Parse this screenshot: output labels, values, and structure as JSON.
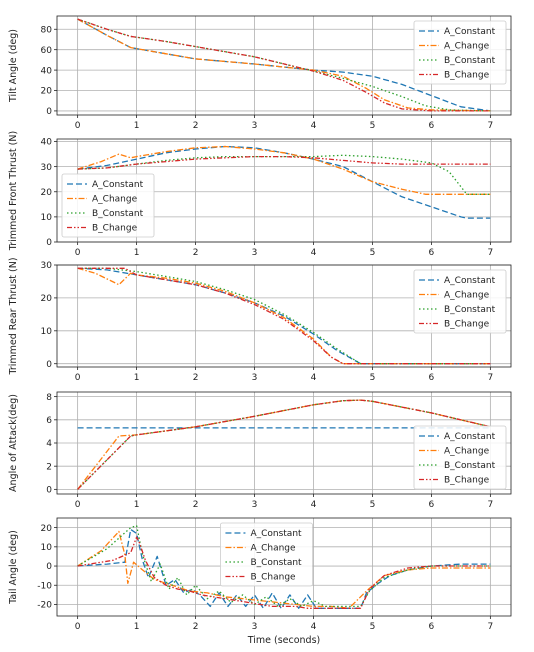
{
  "chart_data": [
    {
      "type": "line",
      "ylabel": "Tilt Angle (deg)",
      "xlabel": "",
      "xlim": [
        -0.35,
        7.35
      ],
      "ylim": [
        -4,
        93
      ],
      "xticks": [
        "0",
        "1",
        "2",
        "3",
        "4",
        "5",
        "6",
        "7"
      ],
      "yticks": [
        "0",
        "20",
        "40",
        "60",
        "80"
      ],
      "grid": true,
      "legend": "top-right",
      "series": [
        {
          "name": "A_Constant",
          "x": [
            0,
            0.5,
            0.9,
            1.5,
            2,
            3,
            4,
            4.5,
            5,
            5.5,
            6,
            6.5,
            7
          ],
          "y": [
            90,
            74,
            62,
            56,
            51,
            46,
            40,
            38,
            34,
            26,
            15,
            4,
            0
          ]
        },
        {
          "name": "A_Change",
          "x": [
            0,
            0.5,
            0.9,
            1.5,
            2,
            3,
            4,
            4.5,
            4.9,
            5.2,
            5.6,
            6,
            7
          ],
          "y": [
            90,
            74,
            62,
            56,
            51,
            46,
            40,
            34,
            22,
            11,
            3,
            1,
            0
          ]
        },
        {
          "name": "B_Constant",
          "x": [
            0,
            0.5,
            0.9,
            1.5,
            2,
            3,
            4,
            4.5,
            5,
            5.5,
            5.9,
            6.3,
            7
          ],
          "y": [
            90,
            80,
            73,
            68,
            63,
            53,
            39,
            32,
            24,
            14,
            5,
            1,
            0
          ]
        },
        {
          "name": "B_Change",
          "x": [
            0,
            0.5,
            0.9,
            1.5,
            2,
            3,
            4,
            4.5,
            4.9,
            5.2,
            5.5,
            6,
            7
          ],
          "y": [
            90,
            80,
            73,
            68,
            63,
            53,
            39,
            30,
            18,
            8,
            2,
            0,
            0
          ]
        }
      ]
    },
    {
      "type": "line",
      "ylabel": "Trimmed Front Thrust (N)",
      "xlabel": "",
      "xlim": [
        -0.35,
        7.35
      ],
      "ylim": [
        0,
        41
      ],
      "xticks": [
        "0",
        "1",
        "2",
        "3",
        "4",
        "5",
        "6",
        "7"
      ],
      "yticks": [
        "0",
        "10",
        "20",
        "30",
        "40"
      ],
      "grid": true,
      "legend": "bottom-left",
      "series": [
        {
          "name": "A_Constant",
          "x": [
            0,
            0.5,
            1,
            1.5,
            2,
            2.5,
            3,
            3.5,
            4,
            4.5,
            5,
            5.5,
            6,
            6.5,
            6.6,
            7
          ],
          "y": [
            29,
            30.5,
            33,
            35.5,
            37,
            38,
            37.5,
            35.5,
            33,
            30,
            24,
            18,
            14,
            10,
            9.5,
            9.5
          ]
        },
        {
          "name": "A_Change",
          "x": [
            0,
            0.4,
            0.7,
            0.9,
            1,
            1.5,
            2,
            2.5,
            3,
            3.5,
            4,
            4.5,
            5,
            5.5,
            5.9,
            7
          ],
          "y": [
            29,
            32,
            35,
            33.5,
            34,
            36,
            37.5,
            38,
            37,
            35.5,
            33,
            29,
            24,
            21,
            19,
            19
          ]
        },
        {
          "name": "B_Constant",
          "x": [
            0,
            0.5,
            1,
            1.5,
            2,
            2.5,
            3,
            3.5,
            4,
            4.5,
            5,
            5.5,
            6,
            6.3,
            6.5,
            6.6,
            7
          ],
          "y": [
            29,
            29.5,
            31,
            32.5,
            33.5,
            34,
            34,
            34,
            34,
            34.5,
            34,
            33,
            31.5,
            28,
            22,
            19,
            19
          ]
        },
        {
          "name": "B_Change",
          "x": [
            0,
            0.5,
            1,
            1.5,
            2,
            2.5,
            3,
            3.5,
            4,
            4.5,
            5,
            5.5,
            6,
            7
          ],
          "y": [
            29,
            29.5,
            31,
            32,
            33,
            33.5,
            34,
            34,
            33.5,
            32.5,
            31.5,
            31,
            31,
            31
          ]
        }
      ]
    },
    {
      "type": "line",
      "ylabel": "Trimmed Rear Thrust (N)",
      "xlabel": "",
      "xlim": [
        -0.35,
        7.35
      ],
      "ylim": [
        -1,
        30
      ],
      "xticks": [
        "0",
        "1",
        "2",
        "3",
        "4",
        "5",
        "6",
        "7"
      ],
      "yticks": [
        "0",
        "10",
        "20",
        "30"
      ],
      "grid": true,
      "legend": "top-right",
      "series": [
        {
          "name": "A_Constant",
          "x": [
            0,
            0.5,
            1,
            1.5,
            2,
            2.5,
            3,
            3.5,
            4,
            4.4,
            4.8,
            5,
            7
          ],
          "y": [
            29,
            28.5,
            27,
            25.5,
            24,
            21.5,
            18.5,
            14.5,
            9,
            4,
            0,
            0,
            0
          ]
        },
        {
          "name": "A_Change",
          "x": [
            0,
            0.3,
            0.7,
            0.9,
            1,
            1.5,
            2,
            2.5,
            3,
            3.5,
            4,
            4.3,
            4.5,
            5,
            7
          ],
          "y": [
            29,
            27.5,
            24,
            27.5,
            27,
            26,
            24.5,
            22,
            18.5,
            14,
            7.5,
            2,
            0,
            0,
            0
          ]
        },
        {
          "name": "B_Constant",
          "x": [
            0,
            0.5,
            1,
            1.5,
            2,
            2.5,
            3,
            3.5,
            4,
            4.4,
            4.8,
            5,
            7
          ],
          "y": [
            29,
            29,
            28,
            26.5,
            25,
            22.5,
            19.5,
            15,
            9.5,
            4.5,
            0,
            0,
            0
          ]
        },
        {
          "name": "B_Change",
          "x": [
            0,
            0.5,
            0.8,
            1,
            1.5,
            2,
            2.5,
            3,
            3.5,
            4,
            4.3,
            4.5,
            5,
            7
          ],
          "y": [
            29,
            29,
            29,
            27,
            25.5,
            24,
            21.5,
            18,
            13.5,
            7,
            2,
            0,
            0,
            0
          ]
        }
      ]
    },
    {
      "type": "line",
      "ylabel": "Angle of Attack(deg)",
      "xlabel": "",
      "xlim": [
        -0.35,
        7.35
      ],
      "ylim": [
        -0.4,
        8.4
      ],
      "xticks": [
        "0",
        "1",
        "2",
        "3",
        "4",
        "5",
        "6",
        "7"
      ],
      "yticks": [
        "0",
        "2",
        "4",
        "6",
        "8"
      ],
      "grid": true,
      "legend": "bottom-right",
      "series": [
        {
          "name": "A_Constant",
          "x": [
            0,
            7
          ],
          "y": [
            5.3,
            5.3
          ]
        },
        {
          "name": "A_Change",
          "x": [
            0,
            0.7,
            1,
            2,
            3,
            4,
            4.5,
            4.8,
            5,
            6,
            7
          ],
          "y": [
            0,
            4.6,
            4.7,
            5.4,
            6.3,
            7.3,
            7.65,
            7.7,
            7.6,
            6.6,
            5.4
          ]
        },
        {
          "name": "B_Constant",
          "x": [
            0,
            0.9,
            1,
            2,
            3,
            4,
            4.5,
            4.8,
            5,
            6,
            7
          ],
          "y": [
            0,
            4.6,
            4.7,
            5.4,
            6.3,
            7.3,
            7.65,
            7.7,
            7.6,
            6.6,
            5.4
          ]
        },
        {
          "name": "B_Change",
          "x": [
            0,
            0.9,
            1,
            2,
            3,
            4,
            4.5,
            4.8,
            5,
            6,
            7
          ],
          "y": [
            0,
            4.6,
            4.7,
            5.4,
            6.3,
            7.3,
            7.65,
            7.7,
            7.6,
            6.6,
            5.4
          ]
        }
      ]
    },
    {
      "type": "line",
      "ylabel": "Tail Angle (deg)",
      "xlabel": "Time (seconds)",
      "xlim": [
        -0.35,
        7.35
      ],
      "ylim": [
        -26,
        25
      ],
      "xticks": [
        "0",
        "1",
        "2",
        "3",
        "4",
        "5",
        "6",
        "7"
      ],
      "yticks": [
        "-20",
        "-10",
        "0",
        "10",
        "20"
      ],
      "grid": true,
      "legend": "upper-center",
      "series": [
        {
          "name": "A_Constant",
          "x": [
            0,
            0.5,
            0.8,
            0.9,
            1.0,
            1.1,
            1.2,
            1.35,
            1.5,
            1.65,
            1.8,
            1.95,
            2.1,
            2.25,
            2.4,
            2.55,
            2.7,
            2.85,
            3.0,
            3.15,
            3.3,
            3.45,
            3.6,
            3.75,
            3.9,
            4.05,
            4.2,
            4.4,
            4.6,
            4.8,
            4.9,
            5.1,
            5.3,
            5.6,
            6,
            6.5,
            7
          ],
          "y": [
            0,
            1,
            2,
            19,
            17,
            3,
            -6,
            5,
            -10,
            -7,
            -14,
            -12,
            -16,
            -21,
            -14,
            -21,
            -15,
            -21,
            -15,
            -22,
            -14,
            -22,
            -15,
            -22,
            -15,
            -22,
            -22,
            -22,
            -22,
            -22,
            -14,
            -9,
            -5,
            -2,
            0,
            1,
            1
          ]
        },
        {
          "name": "A_Change",
          "x": [
            0,
            0.4,
            0.7,
            0.8,
            0.85,
            0.95,
            1.1,
            1.3,
            1.5,
            1.7,
            1.9,
            2.2,
            2.5,
            2.8,
            3.1,
            3.4,
            3.7,
            4.0,
            4.3,
            4.6,
            4.9,
            5.2,
            5.6,
            6,
            7
          ],
          "y": [
            0,
            8,
            18,
            6,
            -9,
            2,
            -2,
            -7,
            -9,
            -11,
            -13,
            -14,
            -16,
            -17,
            -18,
            -19,
            -20,
            -21,
            -21,
            -22,
            -13,
            -5,
            -2,
            -1,
            -1
          ]
        },
        {
          "name": "B_Constant",
          "x": [
            0,
            0.5,
            0.9,
            1.0,
            1.1,
            1.25,
            1.4,
            1.55,
            1.7,
            1.85,
            2.0,
            2.2,
            2.4,
            2.6,
            2.8,
            3.0,
            3.2,
            3.4,
            3.6,
            3.8,
            4.0,
            4.2,
            4.5,
            4.8,
            4.95,
            5.2,
            5.6,
            6,
            7
          ],
          "y": [
            0,
            9,
            20,
            21,
            6,
            -8,
            1,
            -12,
            -6,
            -15,
            -10,
            -17,
            -13,
            -19,
            -15,
            -20,
            -16,
            -21,
            -17,
            -21,
            -18,
            -21,
            -21,
            -21,
            -13,
            -6,
            -2,
            0,
            0
          ]
        },
        {
          "name": "B_Change",
          "x": [
            0,
            0.6,
            0.9,
            1.0,
            1.05,
            1.15,
            1.3,
            1.5,
            1.7,
            1.9,
            2.1,
            2.3,
            2.5,
            2.7,
            2.9,
            3.1,
            3.3,
            3.5,
            3.7,
            3.9,
            4.2,
            4.5,
            4.8,
            4.95,
            5.2,
            5.6,
            6,
            7
          ],
          "y": [
            0,
            3,
            7,
            15,
            12,
            3,
            -6,
            -10,
            -12,
            -13,
            -15,
            -16,
            -17,
            -18,
            -19,
            -20,
            -21,
            -21,
            -21,
            -22,
            -22,
            -22,
            -22,
            -12,
            -5,
            -1,
            0,
            0
          ]
        }
      ]
    }
  ],
  "colors": {
    "A_Constant": "#1f77b4",
    "A_Change": "#ff7f0e",
    "B_Constant": "#2ca02c",
    "B_Change": "#d62728"
  }
}
